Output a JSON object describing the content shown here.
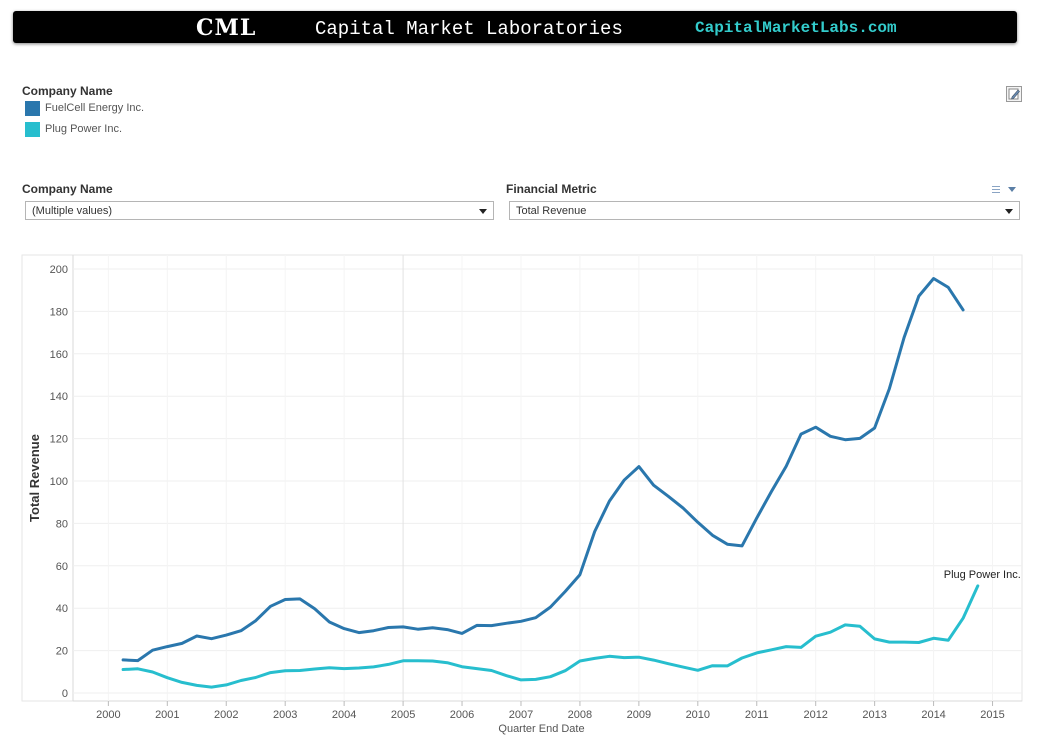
{
  "banner": {
    "logo": "CML",
    "title": "Capital Market Laboratories",
    "url": "CapitalMarketLabs.com"
  },
  "legend": {
    "title": "Company Name",
    "items": [
      {
        "label": "FuelCell Energy Inc.",
        "color": "#2a77ad"
      },
      {
        "label": "Plug Power Inc.",
        "color": "#27bece"
      }
    ]
  },
  "filters": {
    "company": {
      "title": "Company Name",
      "value": "(Multiple values)"
    },
    "metric": {
      "title": "Financial Metric",
      "value": "Total Revenue"
    }
  },
  "icons": {
    "edit": "edit-icon",
    "menu": "menu-icon"
  },
  "chart_data": {
    "type": "line",
    "xlabel": "Quarter End Date",
    "ylabel": "Total Revenue",
    "ylim": [
      0,
      200
    ],
    "yticks": [
      0,
      20,
      40,
      60,
      80,
      100,
      120,
      140,
      160,
      180,
      200
    ],
    "xlim": [
      1999.4,
      2015.5
    ],
    "xticks": [
      2000,
      2001,
      2002,
      2003,
      2004,
      2005,
      2006,
      2007,
      2008,
      2009,
      2010,
      2011,
      2012,
      2013,
      2014,
      2015
    ],
    "grid": true,
    "annotation": {
      "text": "Plug Power Inc.",
      "series": 1
    },
    "series": [
      {
        "name": "FuelCell Energy Inc.",
        "color": "#2a77ad",
        "x": [
          2000.25,
          2000.5,
          2000.75,
          2001.0,
          2001.25,
          2001.5,
          2001.75,
          2002.0,
          2002.25,
          2002.5,
          2002.75,
          2003.0,
          2003.25,
          2003.5,
          2003.75,
          2004.0,
          2004.25,
          2004.5,
          2004.75,
          2005.0,
          2005.25,
          2005.5,
          2005.75,
          2006.0,
          2006.25,
          2006.5,
          2006.75,
          2007.0,
          2007.25,
          2007.5,
          2007.75,
          2008.0,
          2008.25,
          2008.5,
          2008.75,
          2009.0,
          2009.25,
          2009.5,
          2009.75,
          2010.0,
          2010.25,
          2010.5,
          2010.75,
          2011.0,
          2011.25,
          2011.5,
          2011.75,
          2012.0,
          2012.25,
          2012.5,
          2012.75,
          2013.0,
          2013.25,
          2013.5,
          2013.75,
          2014.0,
          2014.25,
          2014.5
        ],
        "values": [
          15.6,
          15.3,
          20.2,
          21.9,
          23.4,
          26.9,
          25.6,
          27.3,
          29.4,
          34.1,
          40.9,
          44.1,
          44.4,
          39.7,
          33.5,
          30.4,
          28.5,
          29.4,
          30.9,
          31.2,
          30.1,
          30.8,
          29.9,
          28.1,
          31.9,
          31.8,
          32.9,
          33.8,
          35.5,
          40.5,
          47.9,
          55.8,
          76.2,
          90.5,
          100.4,
          106.8,
          98.0,
          92.8,
          87.2,
          80.5,
          74.4,
          70.2,
          69.4,
          82.6,
          95.1,
          107.0,
          122.1,
          125.4,
          121.1,
          119.5,
          120.1,
          125.0,
          143.6,
          167.7,
          187.2,
          195.5,
          191.3,
          180.7
        ]
      },
      {
        "name": "Plug Power Inc.",
        "color": "#27bece",
        "x": [
          2000.25,
          2000.5,
          2000.75,
          2001.0,
          2001.25,
          2001.5,
          2001.75,
          2002.0,
          2002.25,
          2002.5,
          2002.75,
          2003.0,
          2003.25,
          2003.5,
          2003.75,
          2004.0,
          2004.25,
          2004.5,
          2004.75,
          2005.0,
          2005.25,
          2005.5,
          2005.75,
          2006.0,
          2006.25,
          2006.5,
          2006.75,
          2007.0,
          2007.25,
          2007.5,
          2007.75,
          2008.0,
          2008.25,
          2008.5,
          2008.75,
          2009.0,
          2009.25,
          2009.5,
          2009.75,
          2010.0,
          2010.25,
          2010.5,
          2010.75,
          2011.0,
          2011.25,
          2011.5,
          2011.75,
          2012.0,
          2012.25,
          2012.5,
          2012.75,
          2013.0,
          2013.25,
          2013.5,
          2013.75,
          2014.0,
          2014.25,
          2014.5,
          2014.75
        ],
        "values": [
          11.1,
          11.4,
          9.9,
          7.2,
          5.0,
          3.6,
          2.8,
          3.8,
          5.9,
          7.3,
          9.6,
          10.5,
          10.6,
          11.3,
          11.9,
          11.5,
          11.8,
          12.3,
          13.5,
          15.2,
          15.2,
          15.1,
          14.3,
          12.4,
          11.5,
          10.6,
          8.2,
          6.2,
          6.4,
          7.7,
          10.5,
          15.1,
          16.3,
          17.3,
          16.7,
          16.9,
          15.5,
          13.8,
          12.2,
          10.7,
          12.9,
          12.8,
          16.5,
          18.9,
          20.4,
          21.9,
          21.5,
          26.8,
          28.7,
          32.1,
          31.5,
          25.5,
          24.0,
          24.0,
          23.8,
          25.8,
          24.9,
          35.3,
          50.5
        ]
      }
    ]
  }
}
